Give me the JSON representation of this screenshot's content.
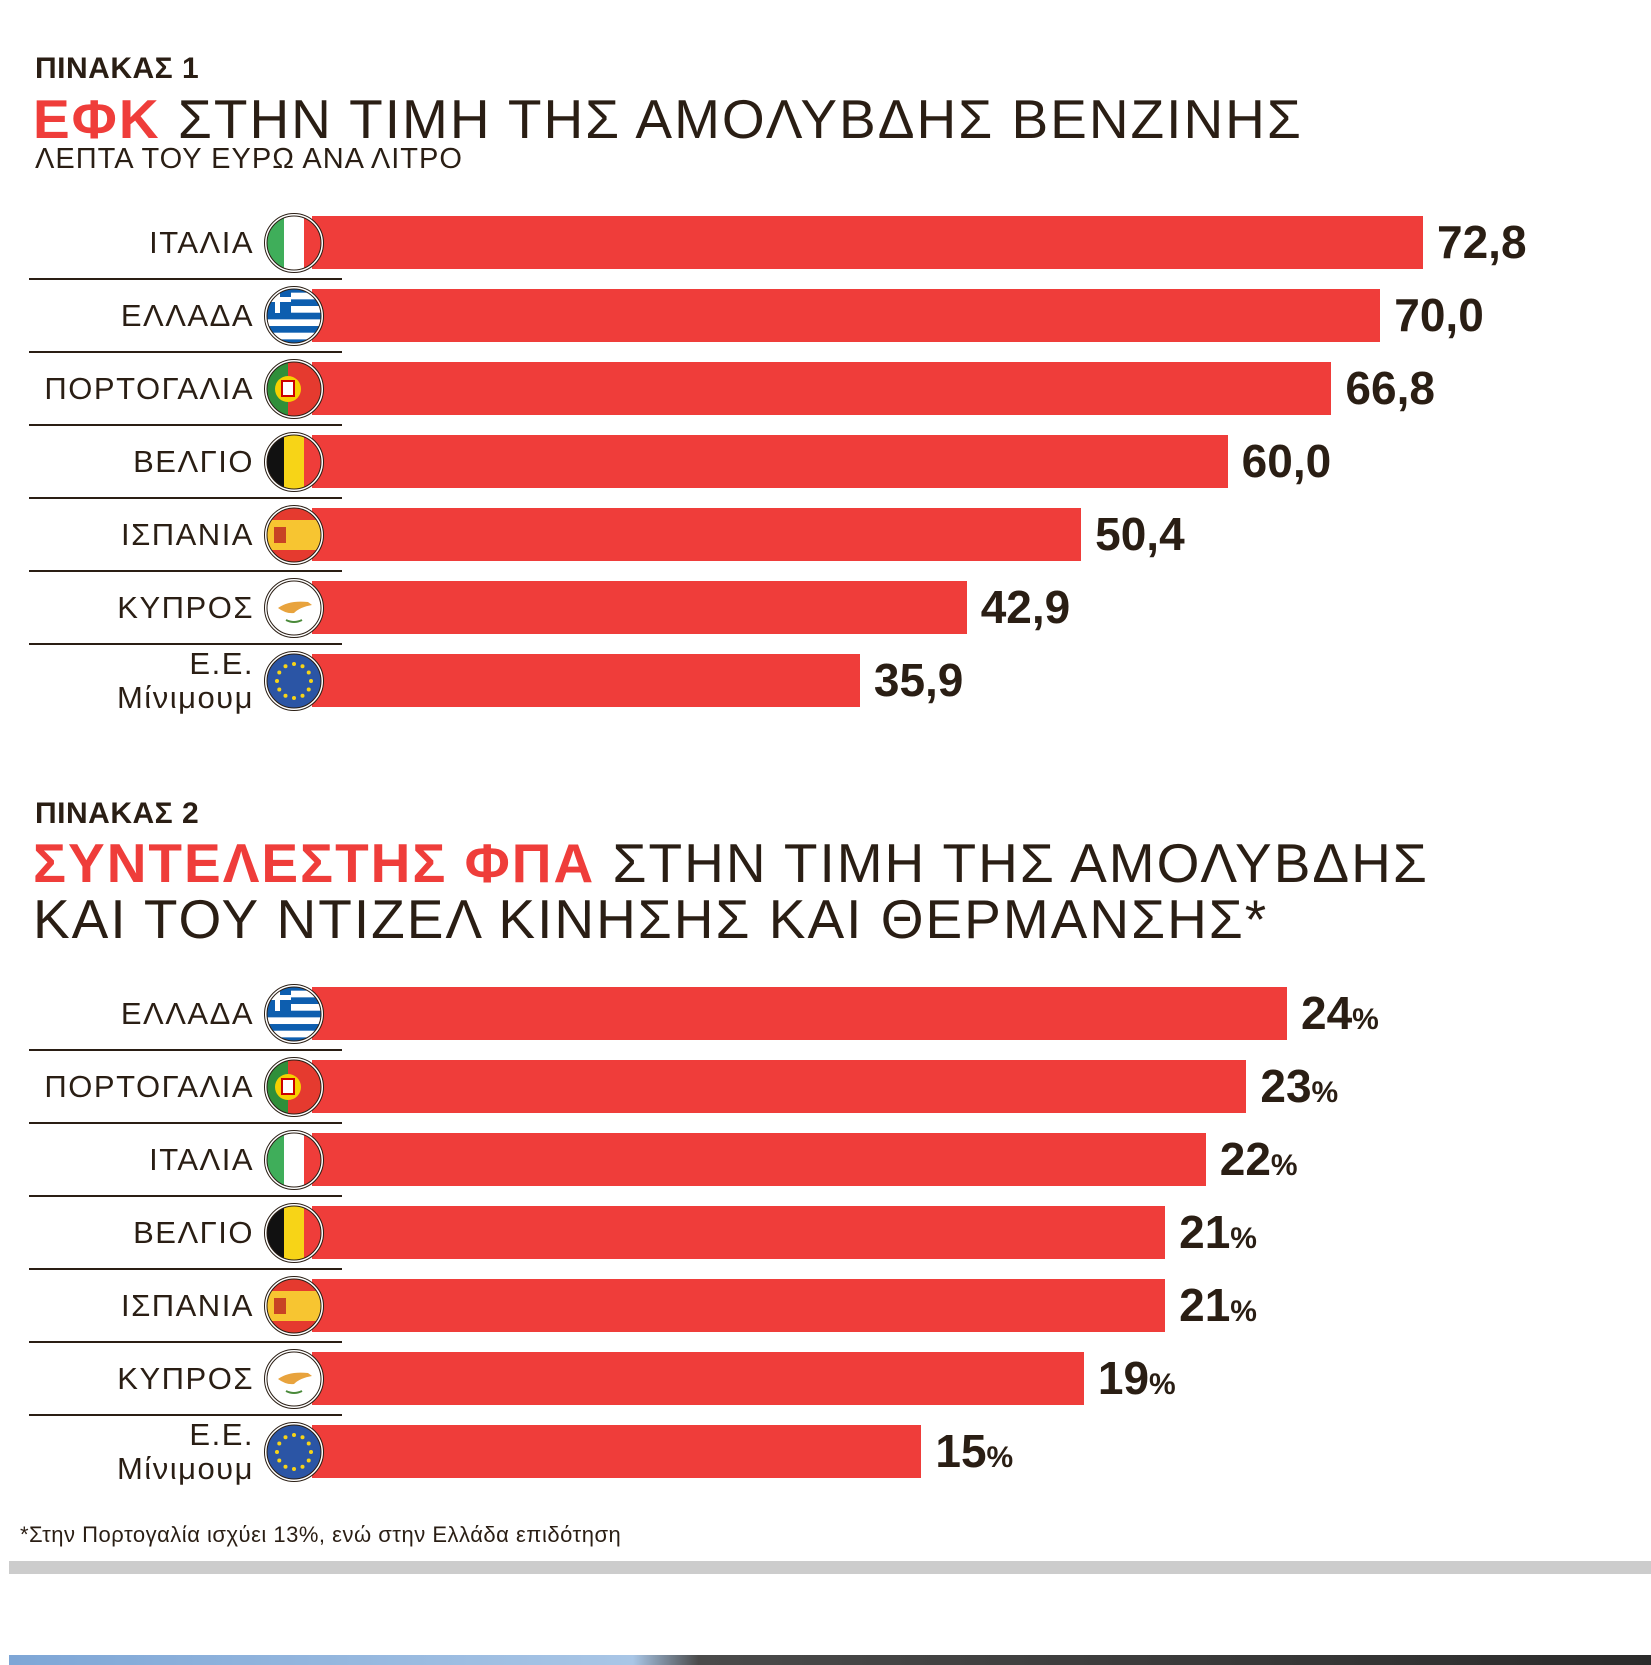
{
  "chart_data": [
    {
      "type": "bar",
      "orientation": "horizontal",
      "kicker": "ΠΙΝΑΚΑΣ 1",
      "title_highlight": "ΕΦΚ",
      "title": "ΣΤΗΝ ΤΙΜΗ ΤΗΣ ΑΜΟΛΥΒΔΗΣ ΒΕΝΖΙΝΗΣ",
      "subtitle": "ΛΕΠΤΑ ΤΟΥ ΕΥΡΩ ΑΝΑ ΛΙΤΡΟ",
      "categories": [
        "ΙΤΑΛΙΑ",
        "ΕΛΛΑΔΑ",
        "ΠΟΡΤΟΓΑΛΙΑ",
        "ΒΕΛΓΙΟ",
        "ΙΣΠΑΝΙΑ",
        "ΚΥΠΡΟΣ",
        "Ε.Ε.\nΜίνιμουμ"
      ],
      "flags": [
        "italy",
        "greece",
        "portugal",
        "belgium",
        "spain",
        "cyprus",
        "eu"
      ],
      "values": [
        72.8,
        70.0,
        66.8,
        60.0,
        50.4,
        42.9,
        35.9
      ],
      "value_labels": [
        "72,8",
        "70,0",
        "66,8",
        "60,0",
        "50,4",
        "42,9",
        "35,9"
      ],
      "unit_suffix": "",
      "xlim": [
        0,
        72.8
      ],
      "bar_color": "#ef3d3a"
    },
    {
      "type": "bar",
      "orientation": "horizontal",
      "kicker": "ΠΙΝΑΚΑΣ 2",
      "title_highlight": "ΣΥΝΤΕΛΕΣΤΗΣ ΦΠΑ",
      "title": "ΣΤΗΝ ΤΙΜΗ ΤΗΣ ΑΜΟΛΥΒΔΗΣ",
      "title_line2": "ΚΑΙ ΤΟΥ ΝΤΙΖΕΛ ΚΙΝΗΣΗΣ ΚΑΙ ΘΕΡΜΑΝΣΗΣ*",
      "categories": [
        "ΕΛΛΑΔΑ",
        "ΠΟΡΤΟΓΑΛΙΑ",
        "ΙΤΑΛΙΑ",
        "ΒΕΛΓΙΟ",
        "ΙΣΠΑΝΙΑ",
        "ΚΥΠΡΟΣ",
        "Ε.Ε.\nΜίνιμουμ"
      ],
      "flags": [
        "greece",
        "portugal",
        "italy",
        "belgium",
        "spain",
        "cyprus",
        "eu"
      ],
      "values": [
        24,
        23,
        22,
        21,
        21,
        19,
        15
      ],
      "value_labels": [
        "24",
        "23",
        "22",
        "21",
        "21",
        "19",
        "15"
      ],
      "unit_suffix": "%",
      "xlim": [
        0,
        24
      ],
      "bar_color": "#ef3d3a",
      "footnote": "*Στην Πορτογαλία ισχύει 13%, ενώ στην Ελλάδα επιδότηση"
    }
  ]
}
